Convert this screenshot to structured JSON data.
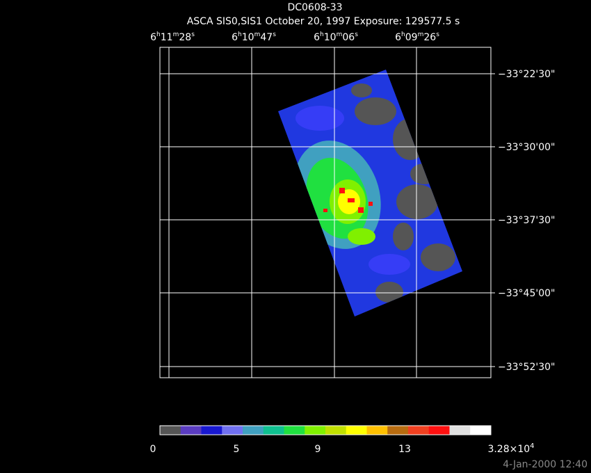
{
  "header": {
    "title": "DC0608-33",
    "subtitle": "ASCA SIS0,SIS1 October 20, 1997 Exposure: 129577.5 s"
  },
  "ra_labels": [
    [
      "6",
      "h",
      "11",
      "m",
      "28",
      "s"
    ],
    [
      "6",
      "h",
      "10",
      "m",
      "47",
      "s"
    ],
    [
      "6",
      "h",
      "10",
      "m",
      "06",
      "s"
    ],
    [
      "6",
      "h",
      "09",
      "m",
      "26",
      "s"
    ]
  ],
  "dec_labels": [
    "−33°22'30\"",
    "−33°30'00\"",
    "−33°37'30\"",
    "−33°45'00\"",
    "−33°52'30\""
  ],
  "colorbar": {
    "colors": [
      "#555555",
      "#5a3cc0",
      "#1818d0",
      "#7070f0",
      "#40a0c0",
      "#10c090",
      "#20e040",
      "#80f000",
      "#c0e000",
      "#ffff00",
      "#ffc000",
      "#b86c10",
      "#f04020",
      "#ff1010",
      "#e0e0e0",
      "#ffffff"
    ],
    "labels": [
      [
        "0"
      ],
      [
        "5"
      ],
      [
        "9"
      ],
      [
        "13"
      ],
      [
        "3.28×10",
        "4"
      ]
    ]
  },
  "footer": "4-Jan-2000 12:40"
}
